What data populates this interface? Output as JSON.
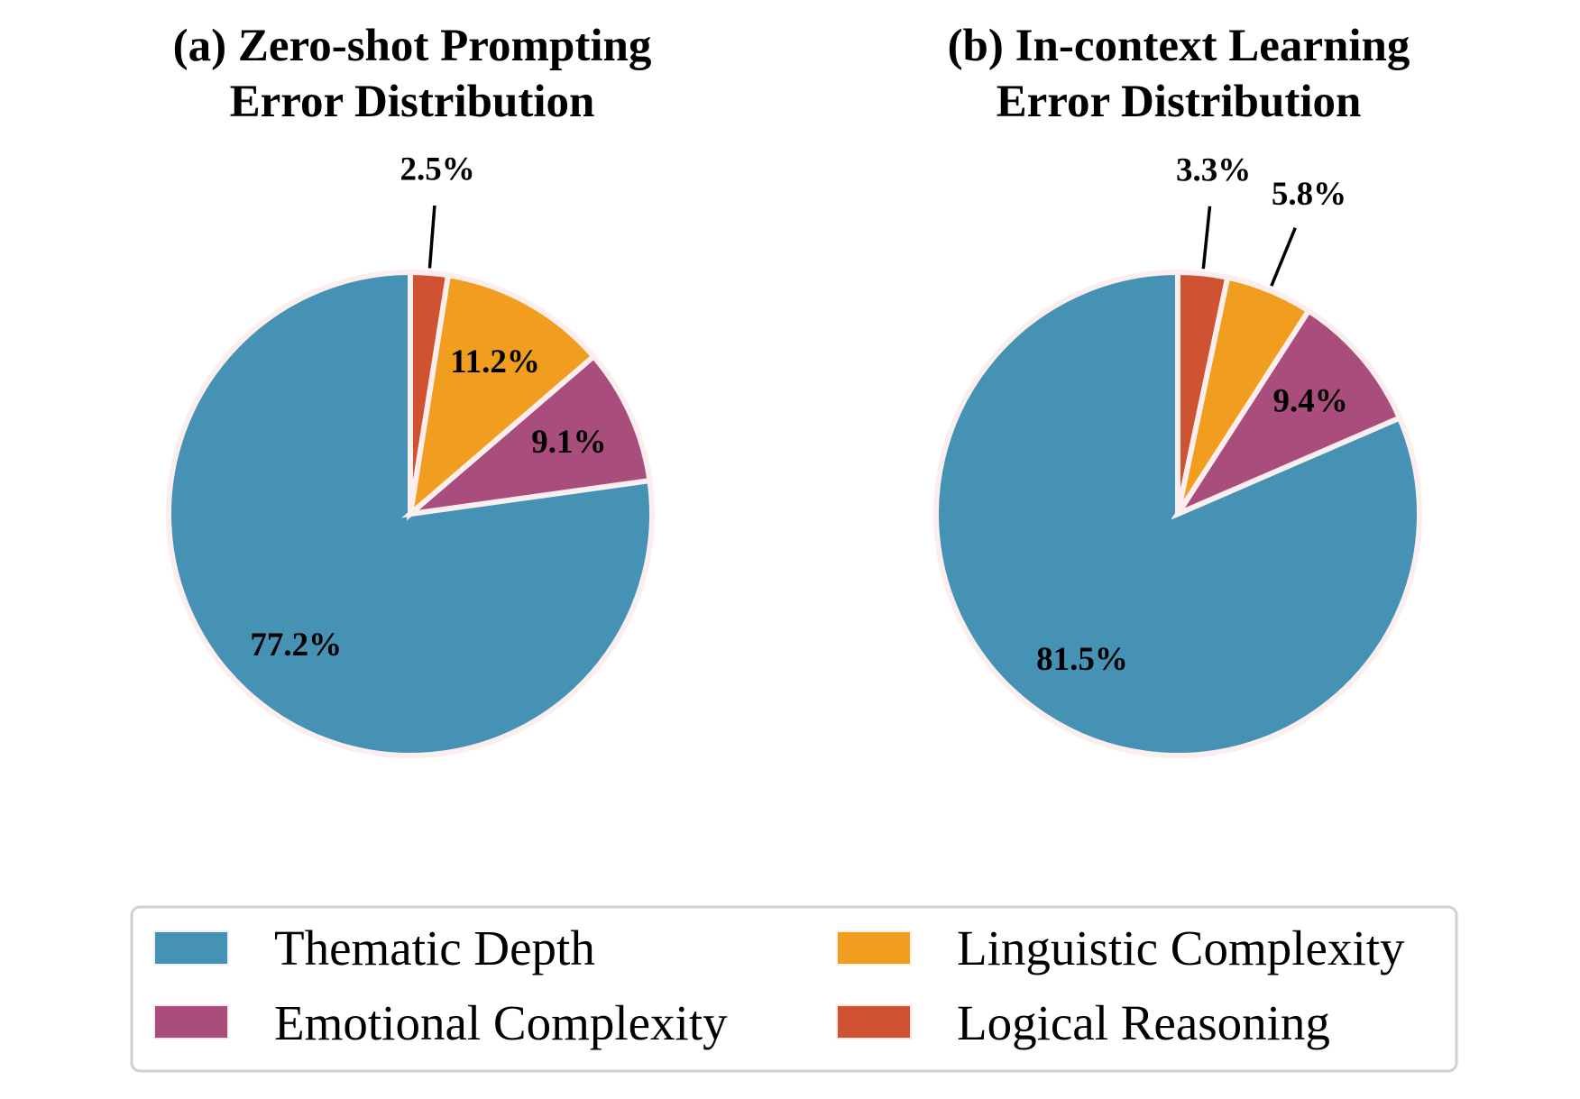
{
  "chart_data": [
    {
      "type": "pie",
      "title_lines": [
        "(a) Zero-shot Prompting",
        "Error Distribution"
      ],
      "categories": [
        "Thematic Depth",
        "Emotional Complexity",
        "Linguistic Complexity",
        "Logical Reasoning"
      ],
      "values": [
        77.2,
        9.1,
        11.2,
        2.5
      ],
      "labels": [
        "77.2%",
        "9.1%",
        "11.2%",
        "2.5%"
      ],
      "start_angle_deg": 90,
      "direction": "counterclockwise"
    },
    {
      "type": "pie",
      "title_lines": [
        "(b) In-context Learning",
        "Error Distribution"
      ],
      "categories": [
        "Thematic Depth",
        "Emotional Complexity",
        "Linguistic Complexity",
        "Logical Reasoning"
      ],
      "values": [
        81.5,
        9.4,
        5.8,
        3.3
      ],
      "labels": [
        "81.5%",
        "9.4%",
        "5.8%",
        "3.3%"
      ],
      "start_angle_deg": 90,
      "direction": "counterclockwise"
    }
  ],
  "legend": {
    "placement": "bottom",
    "items": [
      {
        "label": "Thematic Depth",
        "color": "#4592b5"
      },
      {
        "label": "Linguistic Complexity",
        "color": "#f19d1f"
      },
      {
        "label": "Emotional Complexity",
        "color": "#a94e7c"
      },
      {
        "label": "Logical Reasoning",
        "color": "#cf5332"
      }
    ]
  },
  "colors": {
    "Thematic Depth": "#4592b5",
    "Emotional Complexity": "#a94e7c",
    "Linguistic Complexity": "#f19d1f",
    "Logical Reasoning": "#cf5332"
  }
}
